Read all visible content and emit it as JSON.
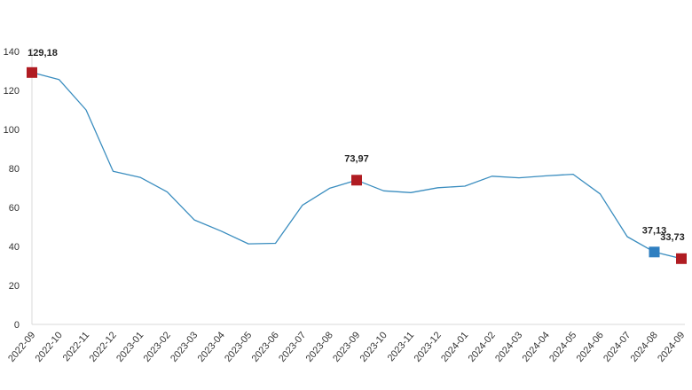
{
  "chart_data": {
    "type": "line",
    "title": "",
    "xlabel": "",
    "ylabel": "",
    "ylim": [
      0,
      140
    ],
    "yticks": [
      0,
      20,
      40,
      60,
      80,
      100,
      120,
      140
    ],
    "grid": false,
    "categories": [
      "2022-09",
      "2022-10",
      "2022-11",
      "2022-12",
      "2023-01",
      "2023-02",
      "2023-03",
      "2023-04",
      "2023-05",
      "2023-06",
      "2023-07",
      "2023-08",
      "2023-09",
      "2023-10",
      "2023-11",
      "2023-12",
      "2024-01",
      "2024-02",
      "2024-03",
      "2024-04",
      "2024-05",
      "2024-06",
      "2024-07",
      "2024-08",
      "2024-09"
    ],
    "series": [
      {
        "values": [
          129.18,
          125.6,
          110.0,
          78.5,
          75.4,
          67.9,
          53.6,
          47.8,
          41.3,
          41.6,
          61.2,
          69.8,
          73.97,
          68.5,
          67.6,
          70.1,
          70.9,
          76.0,
          75.2,
          76.2,
          77.0,
          66.9,
          45.0,
          37.13,
          33.73
        ],
        "color": "#3a8dbf"
      }
    ],
    "highlights": [
      {
        "category": "2022-09",
        "value": 129.18,
        "label": "129,18",
        "color": "#b01c22"
      },
      {
        "category": "2023-09",
        "value": 73.97,
        "label": "73,97",
        "color": "#b01c22"
      },
      {
        "category": "2024-08",
        "value": 37.13,
        "label": "37,13",
        "color": "#2f7fc1"
      },
      {
        "category": "2024-09",
        "value": 33.73,
        "label": "33,73",
        "color": "#b01c22"
      }
    ]
  }
}
